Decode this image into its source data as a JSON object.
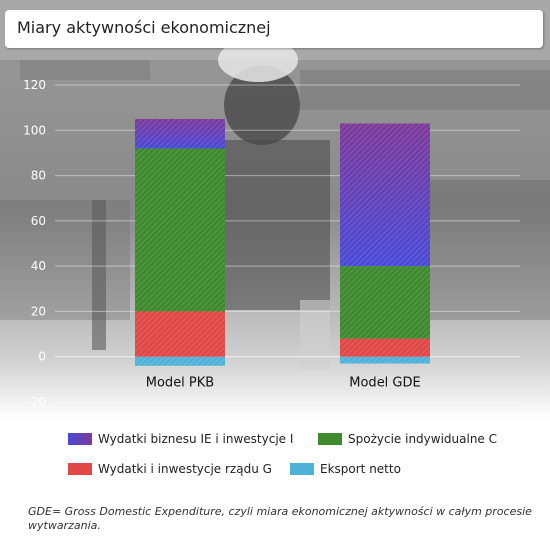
{
  "title": "Miary aktywności ekonomicznej",
  "chart_data": {
    "type": "bar",
    "stacked": true,
    "categories": [
      "Model PKB",
      "Model GDE"
    ],
    "series": [
      {
        "name": "Eksport netto",
        "color": "#4fb3d9",
        "values": [
          -4,
          -3
        ]
      },
      {
        "name": "Wydatki i inwestycje rządu G",
        "color": "#e04848",
        "values": [
          20,
          8
        ]
      },
      {
        "name": "Spożycie indywidualne C",
        "color": "#3f8a2e",
        "values": [
          72,
          32
        ]
      },
      {
        "name": "Wydatki  biznesu IE i inwestycje I",
        "color": "#4a4ad8",
        "gradient_to": "#7d3a9a",
        "values": [
          13,
          63
        ]
      }
    ],
    "ylim": [
      -20,
      120
    ],
    "yticks": [
      "120",
      "100",
      "80",
      "60",
      "40",
      "20",
      "0",
      "-20"
    ],
    "ytick_values": [
      120,
      100,
      80,
      60,
      40,
      20,
      0,
      -20
    ],
    "grid": true,
    "legend_position": "bottom"
  },
  "legend": [
    {
      "label": "Wydatki  biznesu IE i inwestycje I",
      "color": "#5b3fc0"
    },
    {
      "label": "Spożycie indywidualne C",
      "color": "#3f8a2e"
    },
    {
      "label": "Wydatki i inwestycje rządu G",
      "color": "#e04848"
    },
    {
      "label": "Eksport netto",
      "color": "#4fb3d9"
    }
  ],
  "footnote": "GDE= Gross Domestic Expenditure, czyli  miara ekonomicznej aktywności w całym procesie wytwarzania."
}
